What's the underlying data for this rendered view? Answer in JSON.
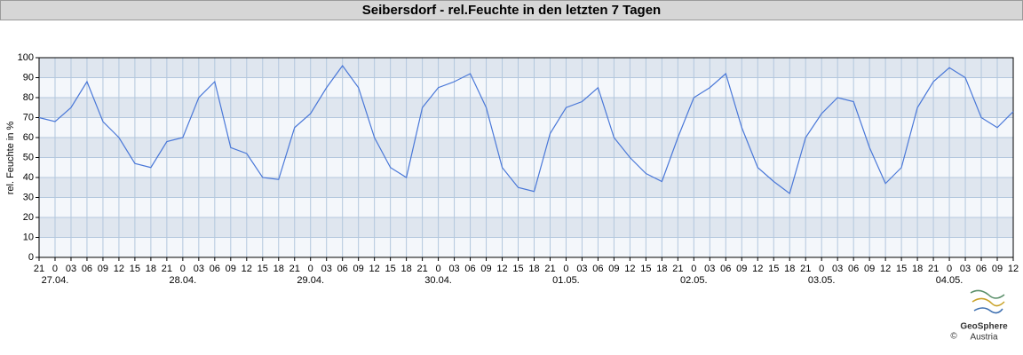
{
  "chart_data": {
    "type": "line",
    "title": "Seibersdorf - rel.Feuchte in den letzten 7 Tagen",
    "y_label": "rel. Feuchte in %",
    "x": [
      -3,
      0,
      3,
      6,
      9,
      12,
      15,
      18,
      21,
      24,
      27,
      30,
      33,
      36,
      39,
      42,
      45,
      48,
      51,
      54,
      57,
      60,
      63,
      66,
      69,
      72,
      75,
      78,
      81,
      84,
      87,
      90,
      93,
      96,
      99,
      102,
      105,
      108,
      111,
      114,
      117,
      120,
      123,
      126,
      129,
      132,
      135,
      138,
      141,
      144,
      147,
      150,
      153,
      156,
      159,
      162,
      165,
      168,
      171,
      174,
      177,
      180
    ],
    "series": [
      {
        "color": "#4a78d8",
        "values": [
          70,
          68,
          75,
          88,
          68,
          60,
          47,
          45,
          58,
          60,
          80,
          88,
          55,
          52,
          40,
          39,
          65,
          72,
          85,
          96,
          85,
          60,
          45,
          40,
          75,
          85,
          88,
          92,
          75,
          45,
          35,
          33,
          62,
          75,
          78,
          85,
          60,
          50,
          42,
          38,
          60,
          80,
          85,
          92,
          65,
          45,
          38,
          32,
          60,
          72,
          80,
          78,
          55,
          37,
          45,
          75,
          88,
          95,
          90,
          70,
          65,
          73
        ]
      }
    ],
    "xlim": [
      -3,
      180
    ],
    "xticks": [
      {
        "value": -3,
        "label": "21"
      },
      0,
      {
        "value": 3,
        "label": "03"
      },
      {
        "value": 6,
        "label": "06"
      },
      {
        "value": 9,
        "label": "09"
      },
      {
        "value": 12,
        "label": "12"
      },
      {
        "value": 15,
        "label": "15"
      },
      {
        "value": 18,
        "label": "18"
      },
      {
        "value": 21,
        "label": "21"
      },
      {
        "value": 24,
        "label": "0"
      },
      {
        "value": 27,
        "label": "03"
      },
      {
        "value": 30,
        "label": "06"
      },
      {
        "value": 33,
        "label": "09"
      },
      {
        "value": 36,
        "label": "12"
      },
      {
        "value": 39,
        "label": "15"
      },
      {
        "value": 42,
        "label": "18"
      },
      {
        "value": 45,
        "label": "21"
      },
      {
        "value": 48,
        "label": "0"
      },
      {
        "value": 51,
        "label": "03"
      },
      {
        "value": 54,
        "label": "06"
      },
      {
        "value": 57,
        "label": "09"
      },
      {
        "value": 60,
        "label": "12"
      },
      {
        "value": 63,
        "label": "15"
      },
      {
        "value": 66,
        "label": "18"
      },
      {
        "value": 69,
        "label": "21"
      },
      {
        "value": 72,
        "label": "0"
      },
      {
        "value": 75,
        "label": "03"
      },
      {
        "value": 78,
        "label": "06"
      },
      {
        "value": 81,
        "label": "09"
      },
      {
        "value": 84,
        "label": "12"
      },
      {
        "value": 87,
        "label": "15"
      },
      {
        "value": 90,
        "label": "18"
      },
      {
        "value": 93,
        "label": "21"
      },
      {
        "value": 96,
        "label": "0"
      },
      {
        "value": 99,
        "label": "03"
      },
      {
        "value": 102,
        "label": "06"
      },
      {
        "value": 105,
        "label": "09"
      },
      {
        "value": 108,
        "label": "12"
      },
      {
        "value": 111,
        "label": "15"
      },
      {
        "value": 114,
        "label": "18"
      },
      {
        "value": 117,
        "label": "21"
      },
      {
        "value": 120,
        "label": "0"
      },
      {
        "value": 123,
        "label": "03"
      },
      {
        "value": 126,
        "label": "06"
      },
      {
        "value": 129,
        "label": "09"
      },
      {
        "value": 132,
        "label": "12"
      },
      {
        "value": 135,
        "label": "15"
      },
      {
        "value": 138,
        "label": "18"
      },
      {
        "value": 141,
        "label": "21"
      },
      {
        "value": 144,
        "label": "0"
      },
      {
        "value": 147,
        "label": "03"
      },
      {
        "value": 150,
        "label": "06"
      },
      {
        "value": 153,
        "label": "09"
      },
      {
        "value": 156,
        "label": "12"
      },
      {
        "value": 159,
        "label": "15"
      },
      {
        "value": 162,
        "label": "18"
      },
      {
        "value": 165,
        "label": "21"
      },
      {
        "value": 168,
        "label": "0"
      },
      {
        "value": 171,
        "label": "03"
      },
      {
        "value": 174,
        "label": "06"
      },
      {
        "value": 177,
        "label": "09"
      },
      {
        "value": 180,
        "label": "12"
      }
    ],
    "date_labels": [
      {
        "value": 0,
        "label": "27.04."
      },
      {
        "value": 24,
        "label": "28.04."
      },
      {
        "value": 48,
        "label": "29.04."
      },
      {
        "value": 72,
        "label": "30.04."
      },
      {
        "value": 96,
        "label": "01.05."
      },
      {
        "value": 120,
        "label": "02.05."
      },
      {
        "value": 144,
        "label": "03.05."
      },
      {
        "value": 168,
        "label": "04.05."
      }
    ],
    "ylim": [
      0,
      100
    ],
    "yticks": [
      0,
      10,
      20,
      30,
      40,
      50,
      60,
      70,
      80,
      90,
      100
    ],
    "grid": true,
    "logo": {
      "name": "GeoSphere",
      "sub": "Austria",
      "copyright": "©"
    }
  }
}
